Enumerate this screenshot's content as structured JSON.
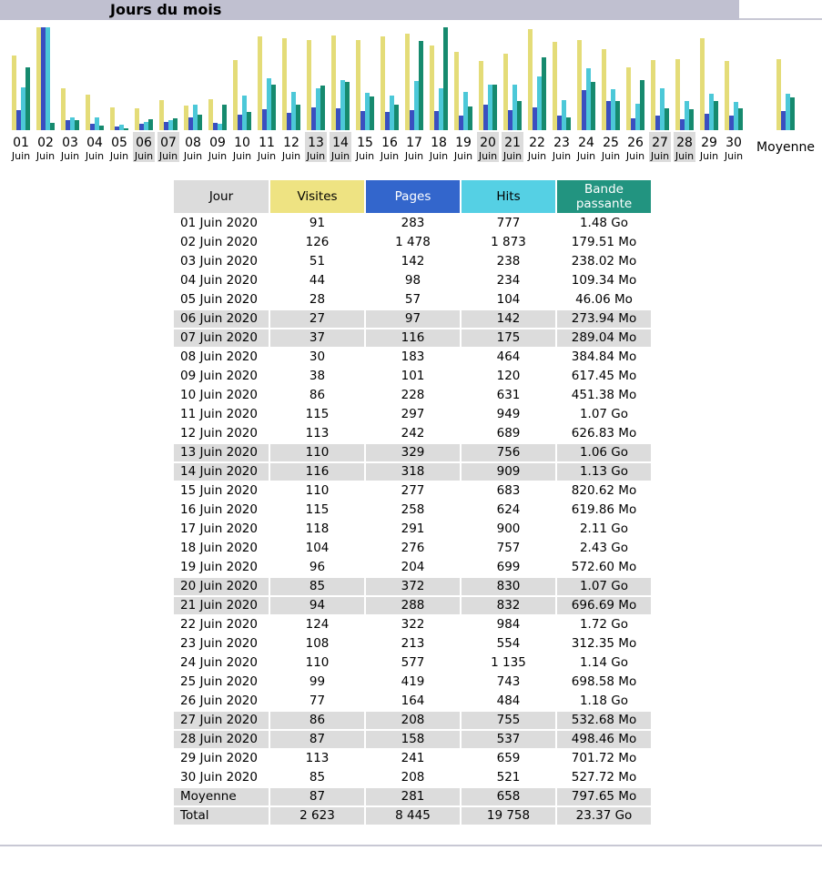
{
  "title": "Jours du mois",
  "colors": {
    "visites": "#e4dc78",
    "pages": "#3a4fc0",
    "hits": "#4cc8d8",
    "bande": "#168a6e",
    "weekend_bg": "#dcdcdc"
  },
  "chart_data": {
    "type": "bar",
    "categories": [
      "01",
      "02",
      "03",
      "04",
      "05",
      "06",
      "07",
      "08",
      "09",
      "10",
      "11",
      "12",
      "13",
      "14",
      "15",
      "16",
      "17",
      "18",
      "19",
      "20",
      "21",
      "22",
      "23",
      "24",
      "25",
      "26",
      "27",
      "28",
      "29",
      "30"
    ],
    "sublabel": "Juin",
    "weekend_days": [
      "06",
      "07",
      "13",
      "14",
      "20",
      "21",
      "27",
      "28"
    ],
    "average_label": "Moyenne",
    "series": [
      {
        "key": "visites",
        "values": [
          91,
          126,
          51,
          44,
          28,
          27,
          37,
          30,
          38,
          86,
          115,
          113,
          110,
          116,
          110,
          115,
          118,
          104,
          96,
          85,
          94,
          124,
          108,
          110,
          99,
          77,
          86,
          87,
          113,
          85
        ],
        "average": 87
      },
      {
        "key": "pages",
        "values": [
          283,
          1478,
          142,
          98,
          57,
          97,
          116,
          183,
          101,
          228,
          297,
          242,
          329,
          318,
          277,
          258,
          291,
          276,
          204,
          372,
          288,
          322,
          213,
          577,
          419,
          164,
          208,
          158,
          241,
          208
        ],
        "average": 281
      },
      {
        "key": "hits",
        "values": [
          777,
          1873,
          238,
          234,
          104,
          142,
          175,
          464,
          120,
          631,
          949,
          689,
          756,
          909,
          683,
          624,
          900,
          757,
          699,
          830,
          832,
          984,
          554,
          1135,
          743,
          484,
          755,
          537,
          659,
          521
        ],
        "average": 658
      },
      {
        "key": "bande_mo",
        "values": [
          1515.5,
          179.51,
          238.02,
          109.34,
          46.06,
          273.94,
          289.04,
          384.84,
          617.45,
          451.38,
          1095.7,
          626.83,
          1085.4,
          1157.1,
          820.62,
          619.86,
          2160.6,
          2488.3,
          572.6,
          1095.7,
          696.69,
          1761.3,
          312.35,
          1167.4,
          698.58,
          1208.3,
          532.68,
          498.46,
          701.72,
          527.72
        ],
        "average": 797.65
      }
    ]
  },
  "table": {
    "headers": {
      "jour": "Jour",
      "visites": "Visites",
      "pages": "Pages",
      "hits": "Hits",
      "bande_line1": "Bande",
      "bande_line2": "passante"
    },
    "rows": [
      {
        "jour": "01 Juin 2020",
        "visites": "91",
        "pages": "283",
        "hits": "777",
        "bande": "1.48 Go",
        "weekend": false
      },
      {
        "jour": "02 Juin 2020",
        "visites": "126",
        "pages": "1 478",
        "hits": "1 873",
        "bande": "179.51 Mo",
        "weekend": false
      },
      {
        "jour": "03 Juin 2020",
        "visites": "51",
        "pages": "142",
        "hits": "238",
        "bande": "238.02 Mo",
        "weekend": false
      },
      {
        "jour": "04 Juin 2020",
        "visites": "44",
        "pages": "98",
        "hits": "234",
        "bande": "109.34 Mo",
        "weekend": false
      },
      {
        "jour": "05 Juin 2020",
        "visites": "28",
        "pages": "57",
        "hits": "104",
        "bande": "46.06 Mo",
        "weekend": false
      },
      {
        "jour": "06 Juin 2020",
        "visites": "27",
        "pages": "97",
        "hits": "142",
        "bande": "273.94 Mo",
        "weekend": true
      },
      {
        "jour": "07 Juin 2020",
        "visites": "37",
        "pages": "116",
        "hits": "175",
        "bande": "289.04 Mo",
        "weekend": true
      },
      {
        "jour": "08 Juin 2020",
        "visites": "30",
        "pages": "183",
        "hits": "464",
        "bande": "384.84 Mo",
        "weekend": false
      },
      {
        "jour": "09 Juin 2020",
        "visites": "38",
        "pages": "101",
        "hits": "120",
        "bande": "617.45 Mo",
        "weekend": false
      },
      {
        "jour": "10 Juin 2020",
        "visites": "86",
        "pages": "228",
        "hits": "631",
        "bande": "451.38 Mo",
        "weekend": false
      },
      {
        "jour": "11 Juin 2020",
        "visites": "115",
        "pages": "297",
        "hits": "949",
        "bande": "1.07 Go",
        "weekend": false
      },
      {
        "jour": "12 Juin 2020",
        "visites": "113",
        "pages": "242",
        "hits": "689",
        "bande": "626.83 Mo",
        "weekend": false
      },
      {
        "jour": "13 Juin 2020",
        "visites": "110",
        "pages": "329",
        "hits": "756",
        "bande": "1.06 Go",
        "weekend": true
      },
      {
        "jour": "14 Juin 2020",
        "visites": "116",
        "pages": "318",
        "hits": "909",
        "bande": "1.13 Go",
        "weekend": true
      },
      {
        "jour": "15 Juin 2020",
        "visites": "110",
        "pages": "277",
        "hits": "683",
        "bande": "820.62 Mo",
        "weekend": false
      },
      {
        "jour": "16 Juin 2020",
        "visites": "115",
        "pages": "258",
        "hits": "624",
        "bande": "619.86 Mo",
        "weekend": false
      },
      {
        "jour": "17 Juin 2020",
        "visites": "118",
        "pages": "291",
        "hits": "900",
        "bande": "2.11 Go",
        "weekend": false
      },
      {
        "jour": "18 Juin 2020",
        "visites": "104",
        "pages": "276",
        "hits": "757",
        "bande": "2.43 Go",
        "weekend": false
      },
      {
        "jour": "19 Juin 2020",
        "visites": "96",
        "pages": "204",
        "hits": "699",
        "bande": "572.60 Mo",
        "weekend": false
      },
      {
        "jour": "20 Juin 2020",
        "visites": "85",
        "pages": "372",
        "hits": "830",
        "bande": "1.07 Go",
        "weekend": true
      },
      {
        "jour": "21 Juin 2020",
        "visites": "94",
        "pages": "288",
        "hits": "832",
        "bande": "696.69 Mo",
        "weekend": true
      },
      {
        "jour": "22 Juin 2020",
        "visites": "124",
        "pages": "322",
        "hits": "984",
        "bande": "1.72 Go",
        "weekend": false
      },
      {
        "jour": "23 Juin 2020",
        "visites": "108",
        "pages": "213",
        "hits": "554",
        "bande": "312.35 Mo",
        "weekend": false
      },
      {
        "jour": "24 Juin 2020",
        "visites": "110",
        "pages": "577",
        "hits": "1 135",
        "bande": "1.14 Go",
        "weekend": false
      },
      {
        "jour": "25 Juin 2020",
        "visites": "99",
        "pages": "419",
        "hits": "743",
        "bande": "698.58 Mo",
        "weekend": false
      },
      {
        "jour": "26 Juin 2020",
        "visites": "77",
        "pages": "164",
        "hits": "484",
        "bande": "1.18 Go",
        "weekend": false
      },
      {
        "jour": "27 Juin 2020",
        "visites": "86",
        "pages": "208",
        "hits": "755",
        "bande": "532.68 Mo",
        "weekend": true
      },
      {
        "jour": "28 Juin 2020",
        "visites": "87",
        "pages": "158",
        "hits": "537",
        "bande": "498.46 Mo",
        "weekend": true
      },
      {
        "jour": "29 Juin 2020",
        "visites": "113",
        "pages": "241",
        "hits": "659",
        "bande": "701.72 Mo",
        "weekend": false
      },
      {
        "jour": "30 Juin 2020",
        "visites": "85",
        "pages": "208",
        "hits": "521",
        "bande": "527.72 Mo",
        "weekend": false
      }
    ],
    "footer": [
      {
        "jour": "Moyenne",
        "visites": "87",
        "pages": "281",
        "hits": "658",
        "bande": "797.65 Mo"
      },
      {
        "jour": "Total",
        "visites": "2 623",
        "pages": "8 445",
        "hits": "19 758",
        "bande": "23.37 Go"
      }
    ]
  }
}
